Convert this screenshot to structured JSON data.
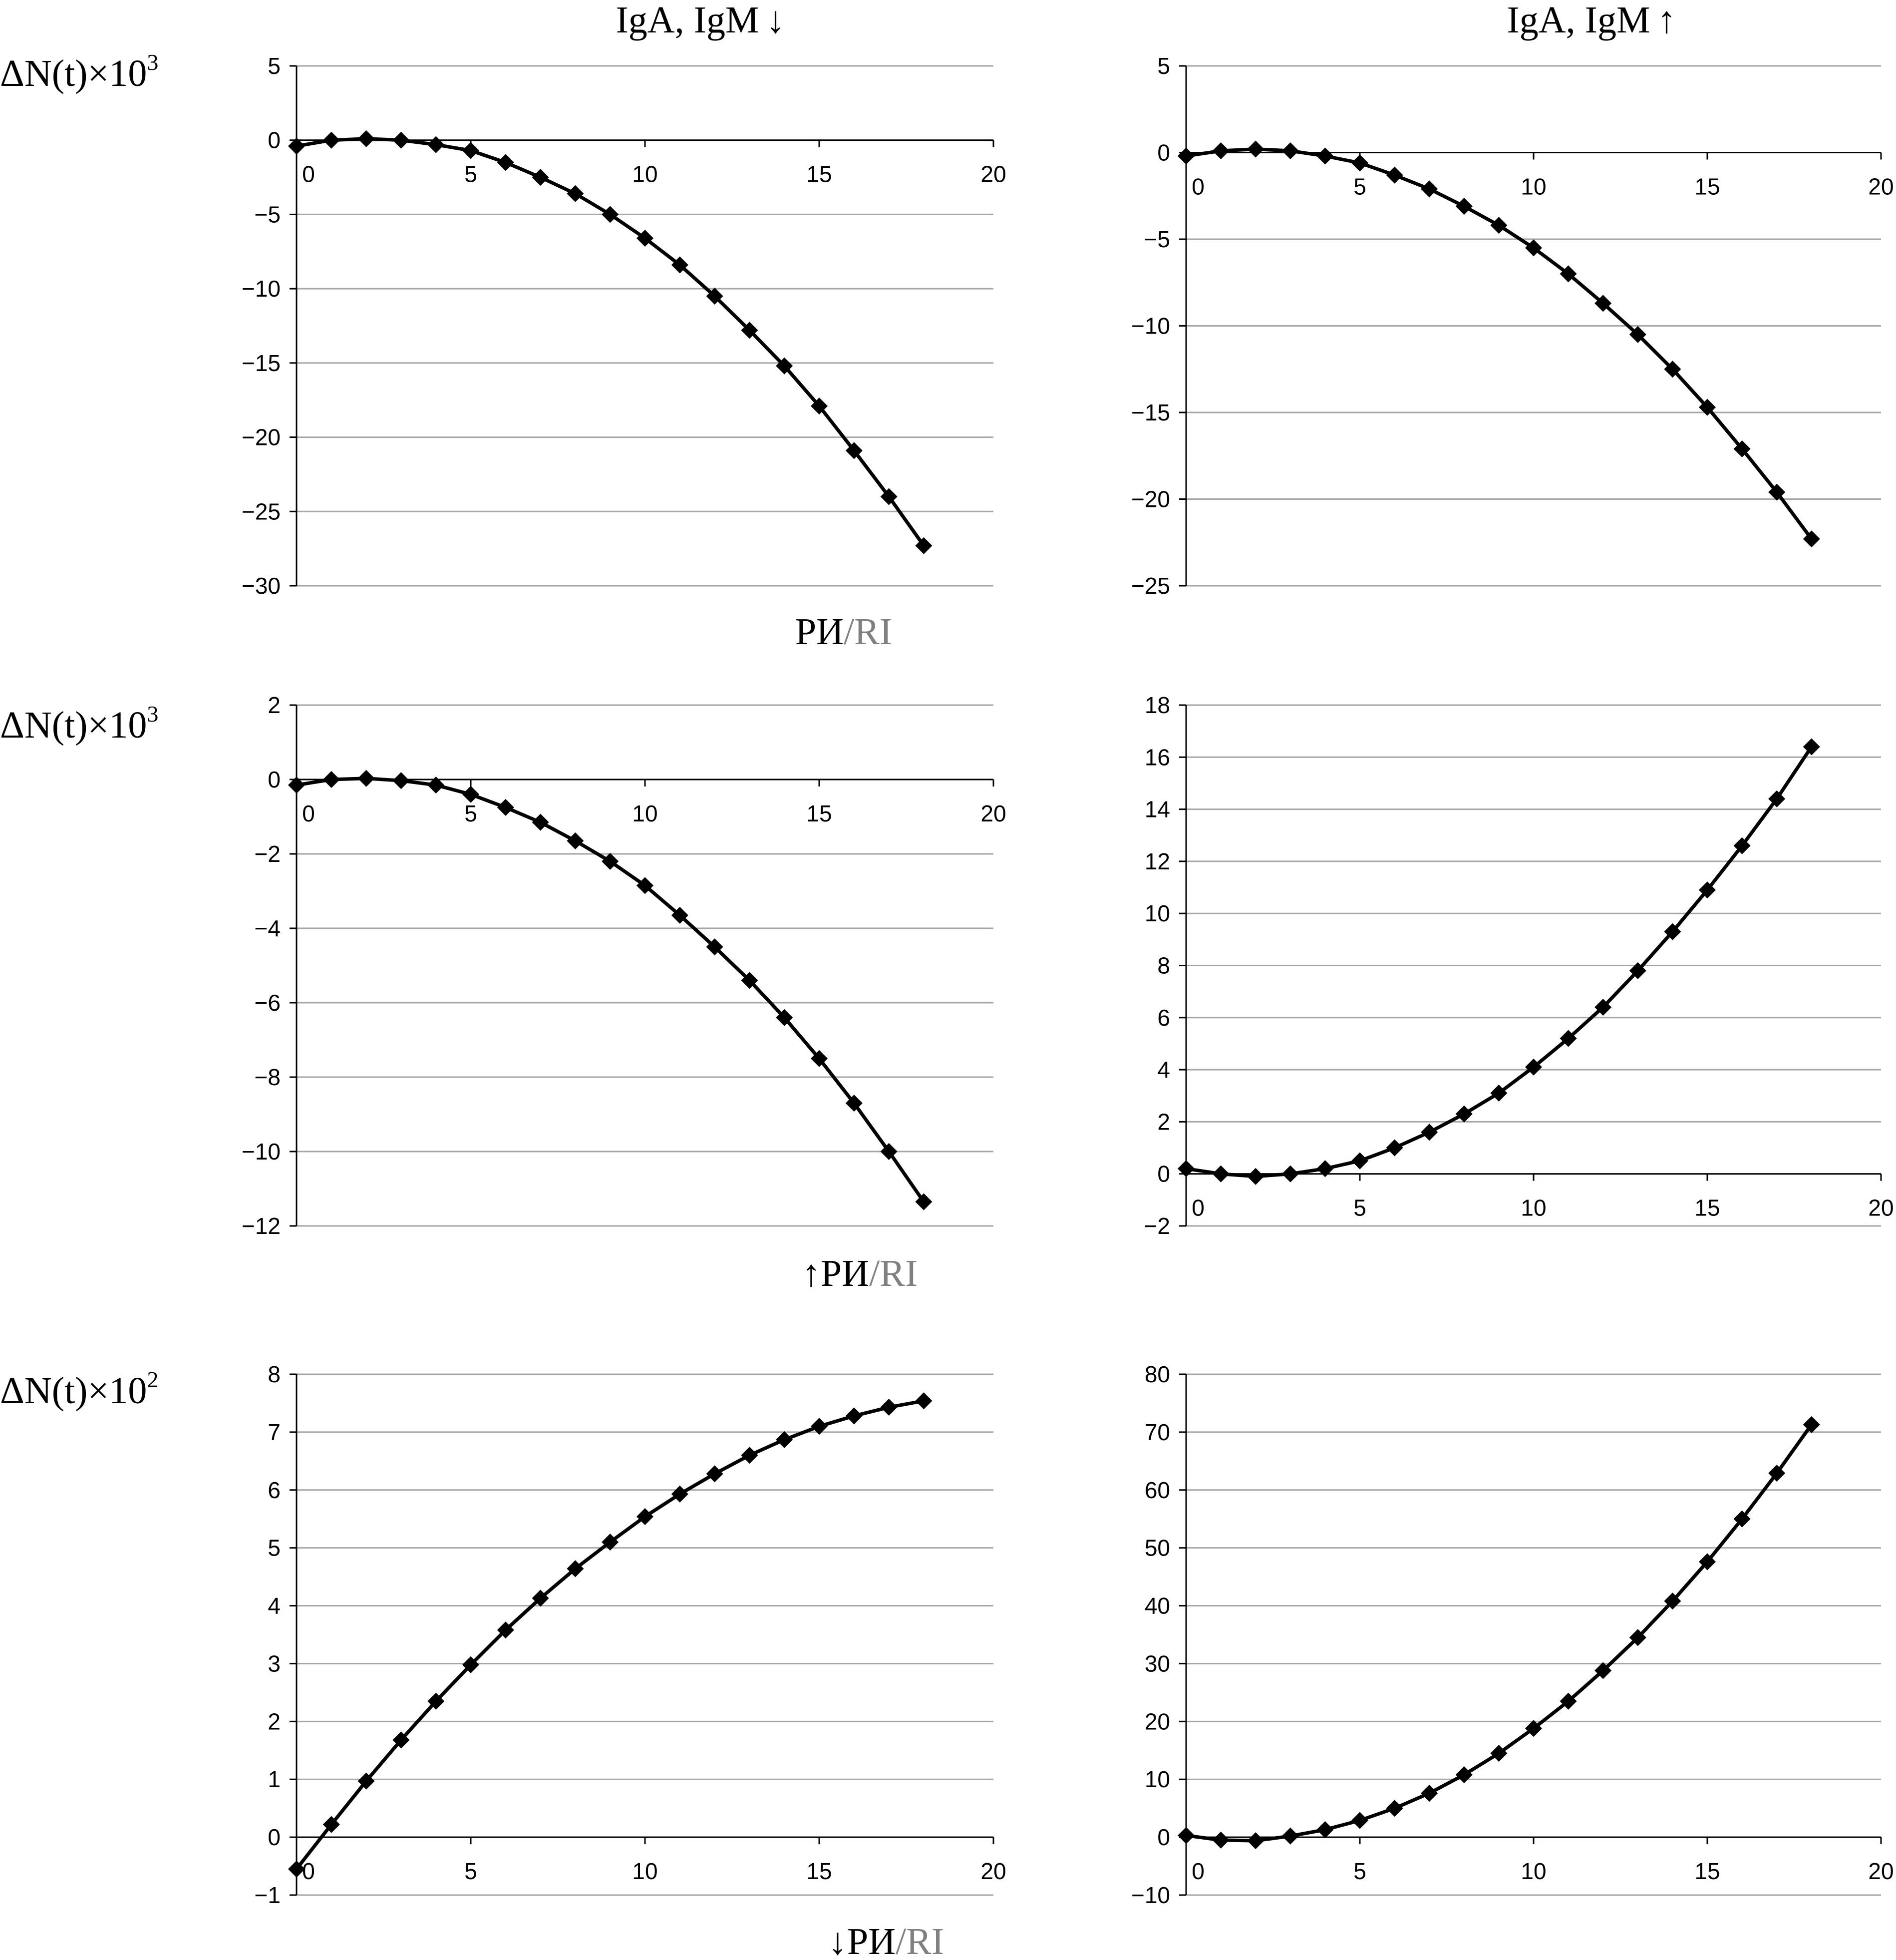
{
  "column_titles": [
    {
      "text": "IgA, IgM",
      "arrow": "↓"
    },
    {
      "text": "IgA, IgM",
      "arrow": "↑"
    }
  ],
  "row_labels": [
    {
      "prefix": "ΔN(t)×10",
      "exponent": "3"
    },
    {
      "prefix": "ΔN(t)×10",
      "exponent": "3"
    },
    {
      "prefix": "ΔN(t)×10",
      "exponent": "2"
    }
  ],
  "row_titles": [
    {
      "arrow": "",
      "main": "РИ",
      "slash": "/",
      "secondary": "RI"
    },
    {
      "arrow": "↑",
      "main": "РИ",
      "slash": "/",
      "secondary": "RI"
    },
    {
      "arrow": "↓",
      "main": "РИ",
      "slash": "/",
      "secondary": "RI"
    }
  ],
  "colors": {
    "series": "#000000",
    "grid": "#a6a6a6",
    "title_secondary": "#808080"
  },
  "chart_data": [
    {
      "type": "line",
      "row": 1,
      "column": 1,
      "marker": "diamond",
      "title": "",
      "xlabel": "",
      "ylabel": "",
      "x": [
        0,
        1,
        2,
        3,
        4,
        5,
        6,
        7,
        8,
        9,
        10,
        11,
        12,
        13,
        14,
        15,
        16,
        17,
        18
      ],
      "series": [
        {
          "values": [
            -0.4,
            0.0,
            0.1,
            0.0,
            -0.3,
            -0.7,
            -1.5,
            -2.5,
            -3.6,
            -5.0,
            -6.6,
            -8.4,
            -10.5,
            -12.8,
            -15.2,
            -17.9,
            -20.9,
            -24.0,
            -27.3
          ]
        }
      ],
      "xlim": [
        0,
        20
      ],
      "ylim": [
        -30,
        5
      ],
      "xticks": [
        0,
        5,
        10,
        15,
        20
      ],
      "yticks": [
        5,
        0,
        -5,
        -10,
        -15,
        -20,
        -25,
        -30
      ],
      "grid": true,
      "legend": "none"
    },
    {
      "type": "line",
      "row": 1,
      "column": 2,
      "marker": "diamond",
      "title": "",
      "xlabel": "",
      "ylabel": "",
      "x": [
        0,
        1,
        2,
        3,
        4,
        5,
        6,
        7,
        8,
        9,
        10,
        11,
        12,
        13,
        14,
        15,
        16,
        17,
        18
      ],
      "series": [
        {
          "values": [
            -0.2,
            0.1,
            0.2,
            0.1,
            -0.2,
            -0.6,
            -1.3,
            -2.1,
            -3.1,
            -4.2,
            -5.5,
            -7.0,
            -8.7,
            -10.5,
            -12.5,
            -14.7,
            -17.1,
            -19.6,
            -22.3
          ]
        }
      ],
      "xlim": [
        0,
        20
      ],
      "ylim": [
        -25,
        5
      ],
      "xticks": [
        0,
        5,
        10,
        15,
        20
      ],
      "yticks": [
        5,
        0,
        -5,
        -10,
        -15,
        -20,
        -25
      ],
      "grid": true,
      "legend": "none"
    },
    {
      "type": "line",
      "row": 2,
      "column": 1,
      "marker": "diamond",
      "title": "",
      "xlabel": "",
      "ylabel": "",
      "x": [
        0,
        1,
        2,
        3,
        4,
        5,
        6,
        7,
        8,
        9,
        10,
        11,
        12,
        13,
        14,
        15,
        16,
        17,
        18
      ],
      "series": [
        {
          "values": [
            -0.15,
            0.0,
            0.03,
            -0.03,
            -0.15,
            -0.4,
            -0.75,
            -1.15,
            -1.65,
            -2.2,
            -2.85,
            -3.65,
            -4.5,
            -5.4,
            -6.4,
            -7.5,
            -8.7,
            -10.0,
            -11.35
          ]
        }
      ],
      "xlim": [
        0,
        20
      ],
      "ylim": [
        -12,
        2
      ],
      "xticks": [
        0,
        5,
        10,
        15,
        20
      ],
      "yticks": [
        2,
        0,
        -2,
        -4,
        -6,
        -8,
        -10,
        -12
      ],
      "grid": true,
      "legend": "none"
    },
    {
      "type": "line",
      "row": 2,
      "column": 2,
      "marker": "diamond",
      "title": "",
      "xlabel": "",
      "ylabel": "",
      "x": [
        0,
        1,
        2,
        3,
        4,
        5,
        6,
        7,
        8,
        9,
        10,
        11,
        12,
        13,
        14,
        15,
        16,
        17,
        18
      ],
      "series": [
        {
          "values": [
            0.2,
            0.0,
            -0.1,
            0.0,
            0.2,
            0.5,
            1.0,
            1.6,
            2.3,
            3.1,
            4.1,
            5.2,
            6.4,
            7.8,
            9.3,
            10.9,
            12.6,
            14.4,
            16.4
          ]
        }
      ],
      "xlim": [
        0,
        20
      ],
      "ylim": [
        -2,
        18
      ],
      "xticks": [
        0,
        5,
        10,
        15,
        20
      ],
      "yticks": [
        18,
        16,
        14,
        12,
        10,
        8,
        6,
        4,
        2,
        0,
        -2
      ],
      "grid": true,
      "legend": "none"
    },
    {
      "type": "line",
      "row": 3,
      "column": 1,
      "marker": "diamond",
      "title": "",
      "xlabel": "",
      "ylabel": "",
      "x": [
        0,
        1,
        2,
        3,
        4,
        5,
        6,
        7,
        8,
        9,
        10,
        11,
        12,
        13,
        14,
        15,
        16,
        17,
        18
      ],
      "series": [
        {
          "values": [
            -0.55,
            0.22,
            0.97,
            1.68,
            2.35,
            2.98,
            3.58,
            4.13,
            4.64,
            5.1,
            5.54,
            5.93,
            6.28,
            6.6,
            6.87,
            7.1,
            7.28,
            7.43,
            7.54
          ]
        }
      ],
      "xlim": [
        0,
        20
      ],
      "ylim": [
        -1,
        8
      ],
      "xticks": [
        0,
        5,
        10,
        15,
        20
      ],
      "yticks": [
        8,
        7,
        6,
        5,
        4,
        3,
        2,
        1,
        0,
        -1
      ],
      "grid": true,
      "legend": "none"
    },
    {
      "type": "line",
      "row": 3,
      "column": 2,
      "marker": "diamond",
      "title": "",
      "xlabel": "",
      "ylabel": "",
      "x": [
        0,
        1,
        2,
        3,
        4,
        5,
        6,
        7,
        8,
        9,
        10,
        11,
        12,
        13,
        14,
        15,
        16,
        17,
        18
      ],
      "series": [
        {
          "values": [
            0.3,
            -0.5,
            -0.6,
            0.2,
            1.3,
            2.9,
            5.0,
            7.6,
            10.8,
            14.5,
            18.8,
            23.5,
            28.8,
            34.5,
            40.8,
            47.6,
            55.0,
            62.9,
            71.3
          ]
        }
      ],
      "xlim": [
        0,
        20
      ],
      "ylim": [
        -10,
        80
      ],
      "xticks": [
        0,
        5,
        10,
        15,
        20
      ],
      "yticks": [
        80,
        70,
        60,
        50,
        40,
        30,
        20,
        10,
        0,
        -10
      ],
      "grid": true,
      "legend": "none"
    }
  ]
}
